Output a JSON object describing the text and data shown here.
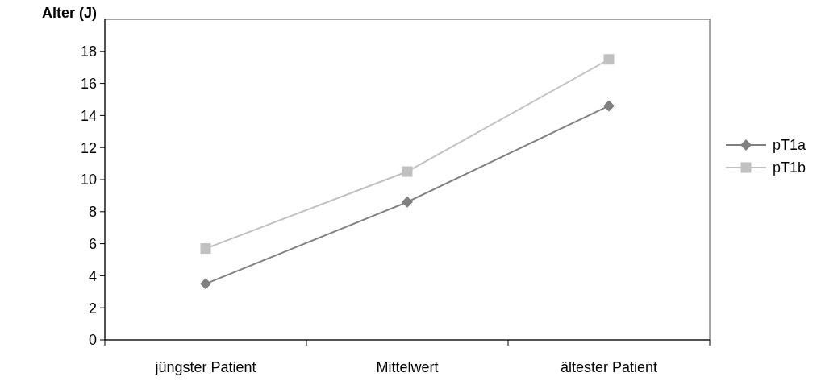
{
  "chart_data": {
    "type": "line",
    "ylabel": "Alter (J)",
    "categories": [
      "jüngster Patient",
      "Mittelwert",
      "ältester Patient"
    ],
    "series": [
      {
        "name": "pT1a",
        "color": "#808080",
        "values": [
          3.5,
          8.6,
          14.6
        ],
        "marker": "diamond"
      },
      {
        "name": "pT1b",
        "color": "#c0c0c0",
        "values": [
          5.7,
          10.5,
          17.5
        ],
        "marker": "square"
      }
    ],
    "ylim": [
      0,
      20
    ],
    "yticks": [
      0,
      2,
      4,
      6,
      8,
      10,
      12,
      14,
      16,
      18
    ],
    "grid": false,
    "legend": "right",
    "line_style": "solid"
  }
}
